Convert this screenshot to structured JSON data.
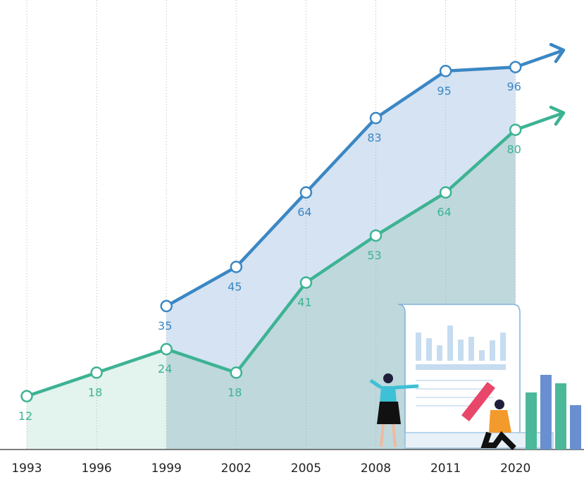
{
  "chart_data": {
    "type": "line",
    "categories": [
      "1993",
      "1996",
      "1999",
      "2002",
      "2005",
      "2008",
      "2011",
      "2020"
    ],
    "series": [
      {
        "name": null,
        "color": "#3a87c4",
        "values": [
          null,
          null,
          35,
          45,
          64,
          83,
          95,
          96
        ]
      },
      {
        "name": null,
        "color": "#3db393",
        "values": [
          12,
          18,
          24,
          18,
          41,
          53,
          64,
          80
        ]
      }
    ],
    "grid": true
  }
}
